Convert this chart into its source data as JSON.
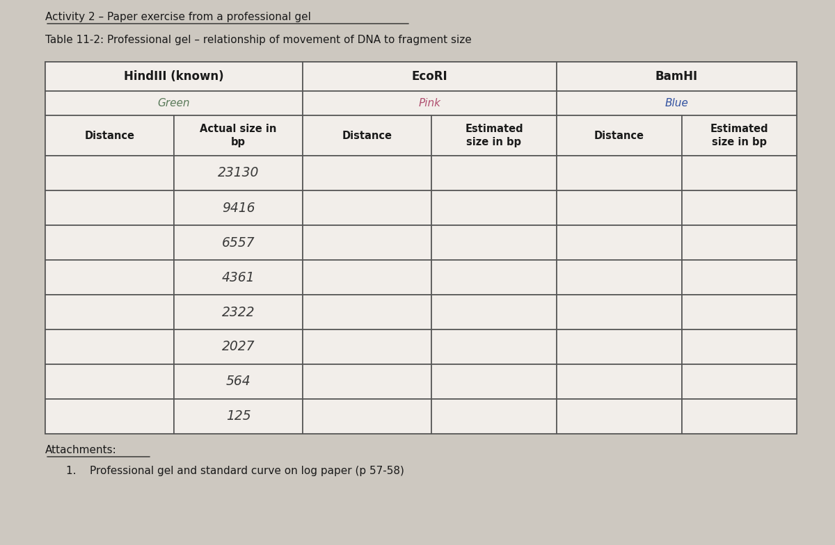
{
  "title_line1": "Activity 2 – Paper exercise from a professional gel",
  "title_line2": "Table 11-2: Professional gel – relationship of movement of DNA to fragment size",
  "col_groups": [
    {
      "label": "HindIII (known)",
      "sublabel": "Green",
      "sublabel_color": "#5a7a5a"
    },
    {
      "label": "EcoRI",
      "sublabel": "Pink",
      "sublabel_color": "#b05070"
    },
    {
      "label": "BamHI",
      "sublabel": "Blue",
      "sublabel_color": "#3050a0"
    }
  ],
  "col_headers": [
    "Distance",
    "Actual size in\nbp",
    "Distance",
    "Estimated\nsize in bp",
    "Distance",
    "Estimated\nsize in bp"
  ],
  "actual_sizes": [
    "23130",
    "9416",
    "6557",
    "4361",
    "2322",
    "2027",
    "564",
    "125"
  ],
  "num_data_rows": 8,
  "bg_color": "#cdc8c0",
  "table_bg": "#f2eeea",
  "border_color": "#555555",
  "text_color": "#1a1a1a",
  "handwritten_color": "#3a3a3a",
  "attachments_text": "Attachments:",
  "attachment_item": "1.    Professional gel and standard curve on log paper (p 57-58)"
}
